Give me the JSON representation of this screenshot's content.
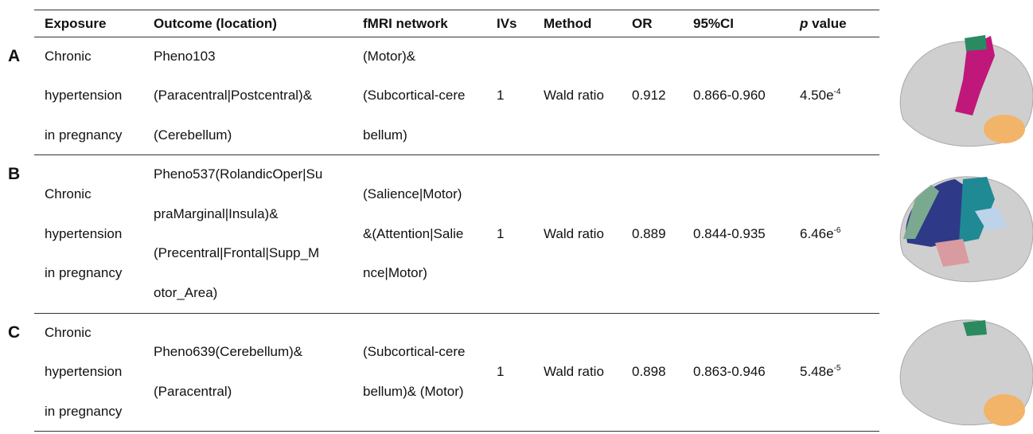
{
  "header": {
    "columns": [
      "Exposure",
      "Outcome (location)",
      "fMRI network",
      "IVs",
      "Method",
      "OR",
      "95%CI"
    ],
    "p_value": {
      "symbol": "p",
      "text": "value"
    }
  },
  "rows": [
    {
      "panel": "A",
      "exposure": [
        "Chronic",
        "hypertension",
        "in pregnancy"
      ],
      "outcome": [
        "Pheno103",
        "(Paracentral|Postcentral)&",
        "(Cerebellum)"
      ],
      "network": [
        "(Motor)&",
        "(Subcortical-cere",
        "bellum)"
      ],
      "ivs": "1",
      "method": "Wald ratio",
      "or": "0.912",
      "ci": "0.866-0.960",
      "p": {
        "mantissa": "4.50e",
        "exponent": "-4"
      }
    },
    {
      "panel": "B",
      "exposure": [
        "Chronic",
        "hypertension",
        "in pregnancy"
      ],
      "outcome": [
        "Pheno537(RolandicOper|Su",
        "praMarginal|Insula)&",
        "(Precentral|Frontal|Supp_M",
        "otor_Area)"
      ],
      "network": [
        "(Salience|Motor)",
        "&(Attention|Salie",
        "nce|Motor)"
      ],
      "ivs": "1",
      "method": "Wald ratio",
      "or": "0.889",
      "ci": "0.844-0.935",
      "p": {
        "mantissa": "6.46e",
        "exponent": "-6"
      }
    },
    {
      "panel": "C",
      "exposure": [
        "Chronic",
        "hypertension",
        "in pregnancy"
      ],
      "outcome": [
        "Pheno639(Cerebellum)&",
        "(Paracentral)"
      ],
      "network": [
        "(Subcortical-cere",
        "bellum)& (Motor)"
      ],
      "ivs": "1",
      "method": "Wald ratio",
      "or": "0.898",
      "ci": "0.863-0.946",
      "p": {
        "mantissa": "5.48e",
        "exponent": "-5"
      }
    }
  ]
}
